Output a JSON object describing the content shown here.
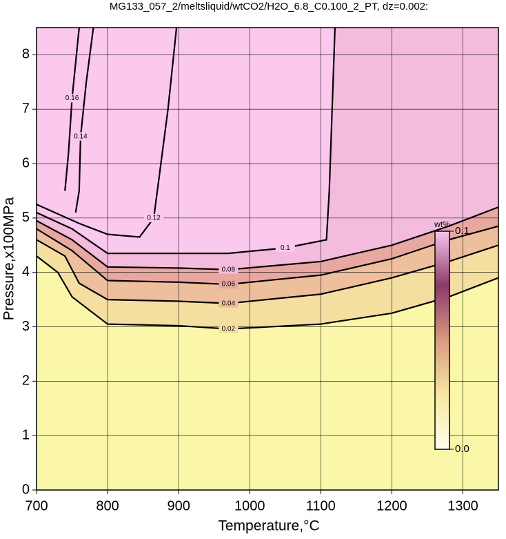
{
  "chart_data": {
    "type": "contour",
    "title": "MG133_057_2/meltsliquid/wtCO2/H2O_6.8_C0.100_2_PT, dz=0.002:",
    "x_label": "Temperature,°C",
    "y_label": "Pressure,x100MPa",
    "xlim": [
      700,
      1350
    ],
    "xticks": [
      700,
      800,
      900,
      1000,
      1100,
      1200,
      1300
    ],
    "ylim": [
      0,
      8.5
    ],
    "yticks": [
      0,
      1,
      2,
      3,
      4,
      5,
      6,
      7,
      8
    ],
    "grid": true,
    "background_color": "#fbf7a8",
    "contours": [
      {
        "level": 0.02,
        "fill": "#f5dfa0",
        "x": [
          700,
          730,
          750,
          800,
          900,
          970,
          1100,
          1200,
          1280,
          1350
        ],
        "y": [
          4.3,
          4.0,
          3.55,
          3.05,
          3.02,
          2.96,
          3.05,
          3.25,
          3.55,
          3.9
        ]
      },
      {
        "level": 0.04,
        "fill": "#eebf9c",
        "x": [
          700,
          740,
          760,
          800,
          900,
          970,
          1100,
          1200,
          1280,
          1350
        ],
        "y": [
          4.6,
          4.3,
          3.8,
          3.5,
          3.47,
          3.43,
          3.6,
          3.9,
          4.2,
          4.5
        ]
      },
      {
        "level": 0.06,
        "fill": "#e8a7a0",
        "x": [
          700,
          750,
          800,
          900,
          970,
          1100,
          1200,
          1280,
          1350
        ],
        "y": [
          4.8,
          4.4,
          3.85,
          3.82,
          3.78,
          3.95,
          4.25,
          4.6,
          4.85
        ]
      },
      {
        "level": 0.08,
        "fill": "#f3bcdc",
        "x": [
          700,
          750,
          800,
          900,
          970,
          1100,
          1200,
          1280,
          1350
        ],
        "y": [
          4.95,
          4.6,
          4.1,
          4.08,
          4.05,
          4.2,
          4.5,
          4.85,
          5.2
        ]
      },
      {
        "level": 0.1,
        "fill": "#fbc8ee",
        "x": [
          700,
          750,
          800,
          900,
          970,
          1050,
          1108,
          1112,
          1116,
          1120
        ],
        "y": [
          5.1,
          4.8,
          4.35,
          4.35,
          4.35,
          4.45,
          4.6,
          5.5,
          7.0,
          8.5
        ]
      },
      {
        "level": 0.12,
        "x": [
          700,
          760,
          800,
          845,
          865,
          875,
          885,
          897
        ],
        "y": [
          5.25,
          4.9,
          4.7,
          4.65,
          5.0,
          6.0,
          7.0,
          8.5
        ]
      },
      {
        "level": 0.14,
        "x": [
          755,
          760,
          762,
          770,
          780
        ],
        "y": [
          5.1,
          5.5,
          6.5,
          7.5,
          8.5
        ]
      },
      {
        "level": 0.16,
        "x": [
          740,
          745,
          750,
          760
        ],
        "y": [
          5.5,
          6.2,
          7.2,
          8.5
        ]
      }
    ],
    "colorbar": {
      "title": "wt%",
      "lim": [
        0,
        0.1
      ],
      "ticks": [
        {
          "value": 0,
          "label": "0.0"
        },
        0.1
      ],
      "colors": [
        "#fffff0",
        "#f7e7a0",
        "#d99a80",
        "#8a3a6a",
        "#f6c6ee"
      ]
    }
  }
}
